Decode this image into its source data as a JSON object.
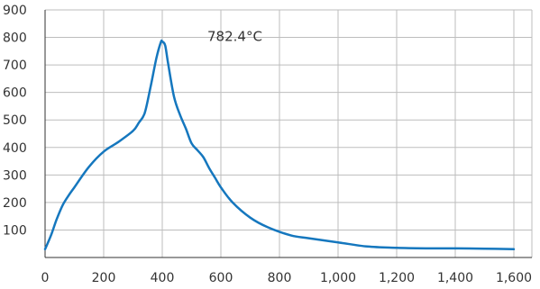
{
  "chart_data": {
    "type": "line",
    "title": "",
    "xlabel": "",
    "ylabel": "",
    "xlim": [
      0,
      1600
    ],
    "ylim": [
      0,
      900
    ],
    "x_ticks": [
      0,
      200,
      400,
      600,
      800,
      1000,
      1200,
      1400,
      1600
    ],
    "x_tick_labels": [
      "0",
      "200",
      "400",
      "600",
      "800",
      "1,000",
      "1,200",
      "1,400",
      "1,600"
    ],
    "y_ticks": [
      100,
      200,
      300,
      400,
      500,
      600,
      700,
      800,
      900
    ],
    "y_tick_labels": [
      "100",
      "200",
      "300",
      "400",
      "500",
      "600",
      "700",
      "800",
      "900"
    ],
    "grid": true,
    "colors": {
      "line": "#1577BE",
      "grid": "#BDBDBD",
      "axis": "#333333",
      "text": "#333333"
    },
    "annotation": {
      "text": "782.4°C",
      "x": 400,
      "y": 782.4
    },
    "series": [
      {
        "x": [
          0,
          20,
          40,
          60,
          80,
          100,
          150,
          200,
          250,
          300,
          320,
          340,
          360,
          380,
          395,
          400,
          410,
          420,
          440,
          460,
          480,
          500,
          520,
          540,
          560,
          580,
          600,
          640,
          700,
          760,
          840,
          900,
          1000,
          1100,
          1200,
          1300,
          1400,
          1500,
          1600
        ],
        "y": [
          30,
          80,
          140,
          190,
          225,
          255,
          330,
          385,
          420,
          460,
          490,
          525,
          620,
          725,
          782.4,
          785,
          770,
          705,
          585,
          520,
          470,
          415,
          390,
          365,
          325,
          290,
          255,
          200,
          145,
          110,
          80,
          70,
          55,
          40,
          35,
          33,
          33,
          32,
          30
        ]
      }
    ]
  }
}
